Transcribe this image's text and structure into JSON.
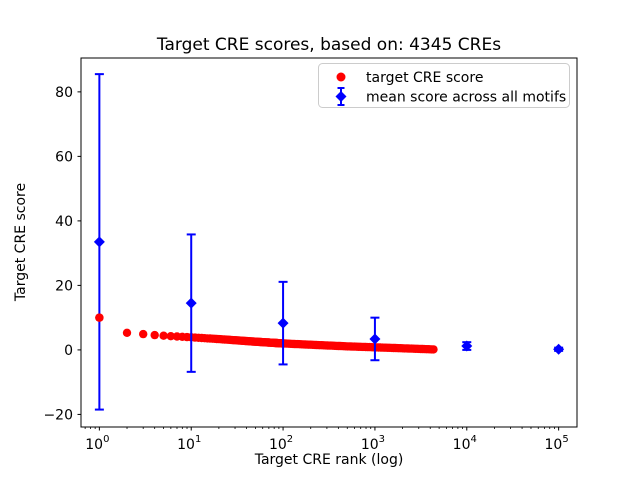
{
  "chart_data": {
    "type": "scatter",
    "title": "Target CRE scores, based on: 4345 CREs",
    "xlabel": "Target CRE rank (log)",
    "ylabel": "Target CRE score",
    "xscale": "log",
    "xlim_log10": [
      -0.2,
      5.2
    ],
    "ylim": [
      -23.9,
      90.5
    ],
    "yticks": [
      -20,
      0,
      20,
      40,
      60,
      80
    ],
    "xtick_exponents": [
      0,
      1,
      2,
      3,
      4,
      5
    ],
    "grid": false,
    "legend_position": "upper right",
    "series": [
      {
        "name": "target CRE score",
        "color": "#ff0000",
        "marker": "circle",
        "n_points": 4345,
        "note": "4345 points at integer ranks forming a dense band; sampled anchor points [rank, score] below",
        "points": [
          [
            1,
            10.0
          ],
          [
            2,
            5.3
          ],
          [
            3,
            4.9
          ],
          [
            4,
            4.6
          ],
          [
            5,
            4.4
          ],
          [
            7,
            4.15
          ],
          [
            10,
            3.9
          ],
          [
            20,
            3.35
          ],
          [
            50,
            2.55
          ],
          [
            100,
            2.0
          ],
          [
            200,
            1.6
          ],
          [
            500,
            1.1
          ],
          [
            1000,
            0.8
          ],
          [
            2000,
            0.5
          ],
          [
            3000,
            0.32
          ],
          [
            4345,
            0.15
          ]
        ]
      },
      {
        "name": "mean score across all motifs",
        "color": "#0000ff",
        "marker": "diamond",
        "x": [
          1,
          10,
          100,
          1000,
          10000,
          100000
        ],
        "y": [
          33.5,
          14.5,
          8.3,
          3.4,
          1.2,
          0.2
        ],
        "yerr": [
          52.0,
          21.3,
          12.8,
          6.6,
          1.2,
          0.5
        ]
      }
    ]
  }
}
